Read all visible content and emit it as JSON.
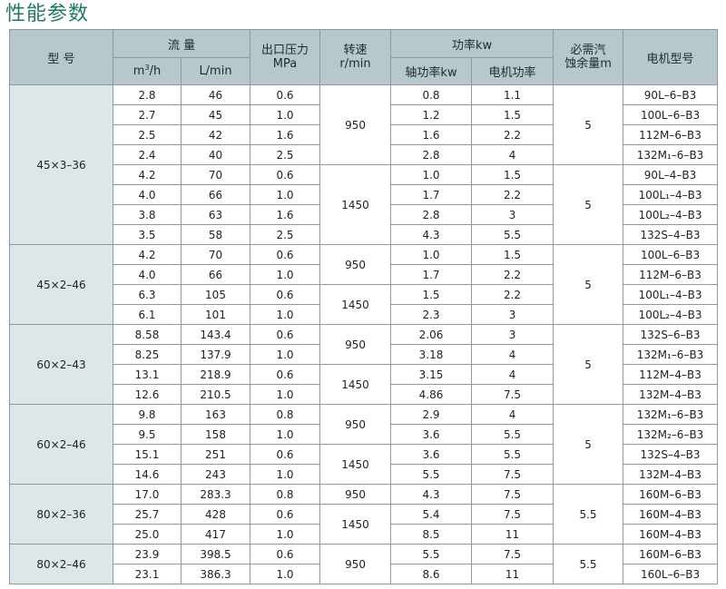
{
  "title": "性能参数",
  "header": {
    "model": "型 号",
    "flow": "流 量",
    "flow_m3h_base": "m",
    "flow_m3h_sup": "3",
    "flow_m3h_tail": "/h",
    "flow_lmin": "L/min",
    "pressure": "出口压力",
    "pressure_unit": "MPa",
    "speed": "转速",
    "speed_unit": "r/min",
    "power": "功率kw",
    "shaft_power": "轴功率kw",
    "motor_power": "电机功率",
    "npsh_line1": "必需汽",
    "npsh_line2": "蚀余量m",
    "motor_model": "电机型号"
  },
  "groups": [
    {
      "model": "45×3–36",
      "speeds": [
        {
          "value": "950",
          "span": 4
        },
        {
          "value": "1450",
          "span": 4
        }
      ],
      "npsh": [
        {
          "value": "5",
          "span": 4
        },
        {
          "value": "5",
          "span": 4
        }
      ],
      "rows": [
        {
          "m3h": "2.8",
          "lmin": "46",
          "mpa": "0.6",
          "shaft": "0.8",
          "motor": "1.1",
          "motor_model": "90L–6–B3"
        },
        {
          "m3h": "2.7",
          "lmin": "45",
          "mpa": "1.0",
          "shaft": "1.2",
          "motor": "1.5",
          "motor_model": "100L–6–B3"
        },
        {
          "m3h": "2.5",
          "lmin": "42",
          "mpa": "1.6",
          "shaft": "1.6",
          "motor": "2.2",
          "motor_model": "112M–6–B3"
        },
        {
          "m3h": "2.4",
          "lmin": "40",
          "mpa": "2.5",
          "shaft": "2.8",
          "motor": "4",
          "motor_model": "132M₁–6–B3"
        },
        {
          "m3h": "4.2",
          "lmin": "70",
          "mpa": "0.6",
          "shaft": "1.0",
          "motor": "1.5",
          "motor_model": "90L–4–B3"
        },
        {
          "m3h": "4.0",
          "lmin": "66",
          "mpa": "1.0",
          "shaft": "1.7",
          "motor": "2.2",
          "motor_model": "100L₁–4–B3"
        },
        {
          "m3h": "3.8",
          "lmin": "63",
          "mpa": "1.6",
          "shaft": "2.8",
          "motor": "3",
          "motor_model": "100L₂–4–B3"
        },
        {
          "m3h": "3.5",
          "lmin": "58",
          "mpa": "2.5",
          "shaft": "4.3",
          "motor": "5.5",
          "motor_model": "132S–4–B3"
        }
      ]
    },
    {
      "model": "45×2–46",
      "speeds": [
        {
          "value": "950",
          "span": 2
        },
        {
          "value": "1450",
          "span": 2
        }
      ],
      "npsh": [
        {
          "value": "5",
          "span": 4
        }
      ],
      "rows": [
        {
          "m3h": "4.2",
          "lmin": "70",
          "mpa": "0.6",
          "shaft": "1.0",
          "motor": "1.5",
          "motor_model": "100L–6–B3"
        },
        {
          "m3h": "4.0",
          "lmin": "66",
          "mpa": "1.0",
          "shaft": "1.7",
          "motor": "2.2",
          "motor_model": "112M–6–B3"
        },
        {
          "m3h": "6.3",
          "lmin": "105",
          "mpa": "0.6",
          "shaft": "1.5",
          "motor": "2.2",
          "motor_model": "100L₁–4–B3"
        },
        {
          "m3h": "6.1",
          "lmin": "101",
          "mpa": "1.0",
          "shaft": "2.3",
          "motor": "3",
          "motor_model": "100L₂–4–B3"
        }
      ]
    },
    {
      "model": "60×2–43",
      "speeds": [
        {
          "value": "950",
          "span": 2
        },
        {
          "value": "1450",
          "span": 2
        }
      ],
      "npsh": [
        {
          "value": "5",
          "span": 4
        }
      ],
      "rows": [
        {
          "m3h": "8.58",
          "lmin": "143.4",
          "mpa": "0.6",
          "shaft": "2.06",
          "motor": "3",
          "motor_model": "132S–6–B3"
        },
        {
          "m3h": "8.25",
          "lmin": "137.9",
          "mpa": "1.0",
          "shaft": "3.18",
          "motor": "4",
          "motor_model": "132M₁–6–B3"
        },
        {
          "m3h": "13.1",
          "lmin": "218.9",
          "mpa": "0.6",
          "shaft": "3.15",
          "motor": "4",
          "motor_model": "112M–4–B3"
        },
        {
          "m3h": "12.6",
          "lmin": "210.5",
          "mpa": "1.0",
          "shaft": "4.86",
          "motor": "7.5",
          "motor_model": "132M–4–B3"
        }
      ]
    },
    {
      "model": "60×2–46",
      "speeds": [
        {
          "value": "950",
          "span": 2
        },
        {
          "value": "1450",
          "span": 2
        }
      ],
      "npsh": [
        {
          "value": "5",
          "span": 4
        }
      ],
      "rows": [
        {
          "m3h": "9.8",
          "lmin": "163",
          "mpa": "0.8",
          "shaft": "2.9",
          "motor": "4",
          "motor_model": "132M₁–6–B3"
        },
        {
          "m3h": "9.5",
          "lmin": "158",
          "mpa": "1.0",
          "shaft": "3.6",
          "motor": "5.5",
          "motor_model": "132M₂–6–B3"
        },
        {
          "m3h": "15.1",
          "lmin": "251",
          "mpa": "0.6",
          "shaft": "3.6",
          "motor": "5.5",
          "motor_model": "132S–4–B3"
        },
        {
          "m3h": "14.6",
          "lmin": "243",
          "mpa": "1.0",
          "shaft": "5.5",
          "motor": "7.5",
          "motor_model": "132M–4–B3"
        }
      ]
    },
    {
      "model": "80×2–36",
      "speeds": [
        {
          "value": "950",
          "span": 1
        },
        {
          "value": "1450",
          "span": 2
        }
      ],
      "npsh": [
        {
          "value": "5.5",
          "span": 3
        }
      ],
      "rows": [
        {
          "m3h": "17.0",
          "lmin": "283.3",
          "mpa": "0.8",
          "shaft": "4.3",
          "motor": "7.5",
          "motor_model": "160M–6–B3"
        },
        {
          "m3h": "25.7",
          "lmin": "428",
          "mpa": "0.6",
          "shaft": "5.4",
          "motor": "7.5",
          "motor_model": "160M–4–B3"
        },
        {
          "m3h": "25.0",
          "lmin": "417",
          "mpa": "1.0",
          "shaft": "8.5",
          "motor": "11",
          "motor_model": "160M–4–B3"
        }
      ]
    },
    {
      "model": "80×2–46",
      "speeds": [
        {
          "value": "950",
          "span": 2
        }
      ],
      "npsh": [
        {
          "value": "5.5",
          "span": 2
        }
      ],
      "rows": [
        {
          "m3h": "23.9",
          "lmin": "398.5",
          "mpa": "0.6",
          "shaft": "5.5",
          "motor": "7.5",
          "motor_model": "160M–6–B3"
        },
        {
          "m3h": "23.1",
          "lmin": "386.3",
          "mpa": "1.0",
          "shaft": "8.6",
          "motor": "11",
          "motor_model": "160L–6–B3"
        }
      ]
    }
  ]
}
